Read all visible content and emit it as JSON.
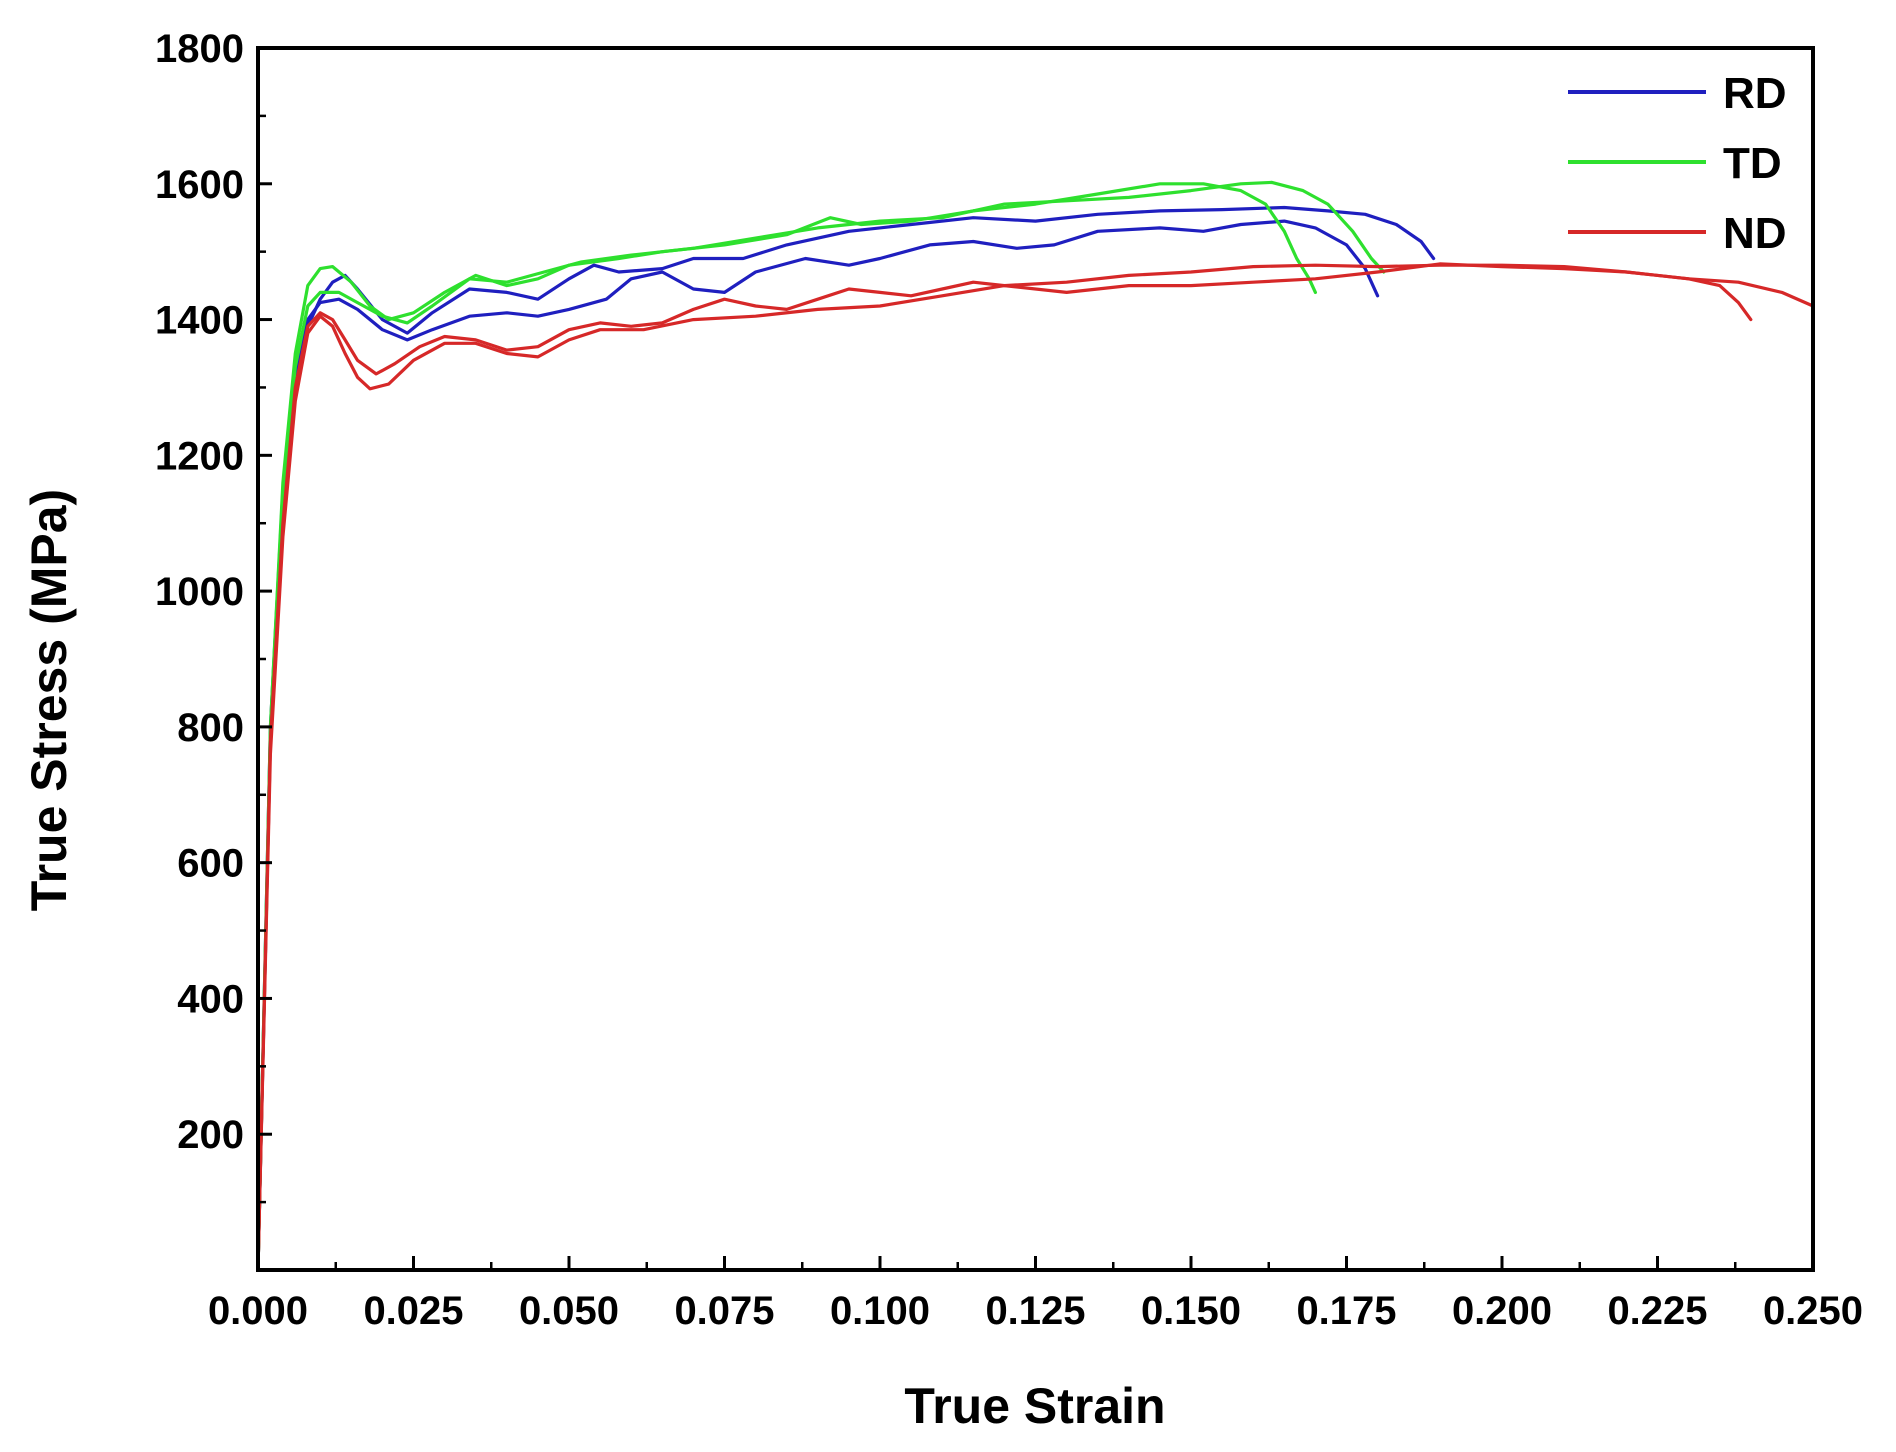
{
  "chart_data": {
    "type": "line",
    "title": "",
    "xlabel": "True Strain",
    "ylabel": "True Stress (MPa)",
    "xlim": [
      0,
      0.25
    ],
    "ylim": [
      0,
      1800
    ],
    "xticks": [
      "0.000",
      "0.025",
      "0.050",
      "0.075",
      "0.100",
      "0.125",
      "0.150",
      "0.175",
      "0.200",
      "0.225",
      "0.250"
    ],
    "yticks": [
      "200",
      "400",
      "600",
      "800",
      "1000",
      "1200",
      "1400",
      "1600",
      "1800"
    ],
    "grid": false,
    "legend_position": "top-right",
    "legend": [
      {
        "name": "RD",
        "color": "#1f1fbf"
      },
      {
        "name": "TD",
        "color": "#2ee02e"
      },
      {
        "name": "ND",
        "color": "#d62828"
      }
    ],
    "series": [
      {
        "name": "RD",
        "group": "RD",
        "color": "#1f1fbf",
        "points": [
          [
            0,
            0
          ],
          [
            0.002,
            800
          ],
          [
            0.004,
            1150
          ],
          [
            0.006,
            1320
          ],
          [
            0.008,
            1400
          ],
          [
            0.01,
            1425
          ],
          [
            0.013,
            1430
          ],
          [
            0.016,
            1415
          ],
          [
            0.02,
            1385
          ],
          [
            0.024,
            1370
          ],
          [
            0.028,
            1385
          ],
          [
            0.034,
            1405
          ],
          [
            0.04,
            1410
          ],
          [
            0.045,
            1405
          ],
          [
            0.05,
            1415
          ],
          [
            0.056,
            1430
          ],
          [
            0.06,
            1460
          ],
          [
            0.065,
            1470
          ],
          [
            0.07,
            1445
          ],
          [
            0.075,
            1440
          ],
          [
            0.08,
            1470
          ],
          [
            0.088,
            1490
          ],
          [
            0.095,
            1480
          ],
          [
            0.1,
            1490
          ],
          [
            0.108,
            1510
          ],
          [
            0.115,
            1515
          ],
          [
            0.122,
            1505
          ],
          [
            0.128,
            1510
          ],
          [
            0.135,
            1530
          ],
          [
            0.145,
            1535
          ],
          [
            0.152,
            1530
          ],
          [
            0.158,
            1540
          ],
          [
            0.165,
            1545
          ],
          [
            0.17,
            1535
          ],
          [
            0.175,
            1510
          ],
          [
            0.178,
            1475
          ],
          [
            0.18,
            1435
          ]
        ]
      },
      {
        "name": "RD",
        "group": "RD",
        "color": "#1f1fbf",
        "points": [
          [
            0,
            0
          ],
          [
            0.002,
            780
          ],
          [
            0.004,
            1120
          ],
          [
            0.006,
            1300
          ],
          [
            0.008,
            1390
          ],
          [
            0.01,
            1430
          ],
          [
            0.012,
            1455
          ],
          [
            0.014,
            1465
          ],
          [
            0.016,
            1445
          ],
          [
            0.02,
            1400
          ],
          [
            0.024,
            1380
          ],
          [
            0.028,
            1410
          ],
          [
            0.034,
            1445
          ],
          [
            0.04,
            1440
          ],
          [
            0.045,
            1430
          ],
          [
            0.05,
            1460
          ],
          [
            0.054,
            1480
          ],
          [
            0.058,
            1470
          ],
          [
            0.065,
            1475
          ],
          [
            0.07,
            1490
          ],
          [
            0.078,
            1490
          ],
          [
            0.085,
            1510
          ],
          [
            0.095,
            1530
          ],
          [
            0.105,
            1540
          ],
          [
            0.115,
            1550
          ],
          [
            0.125,
            1545
          ],
          [
            0.135,
            1555
          ],
          [
            0.145,
            1560
          ],
          [
            0.155,
            1562
          ],
          [
            0.165,
            1565
          ],
          [
            0.172,
            1560
          ],
          [
            0.178,
            1555
          ],
          [
            0.183,
            1540
          ],
          [
            0.187,
            1515
          ],
          [
            0.189,
            1490
          ]
        ]
      },
      {
        "name": "TD",
        "group": "TD",
        "color": "#2ee02e",
        "points": [
          [
            0,
            0
          ],
          [
            0.002,
            800
          ],
          [
            0.004,
            1160
          ],
          [
            0.006,
            1350
          ],
          [
            0.008,
            1450
          ],
          [
            0.01,
            1475
          ],
          [
            0.012,
            1478
          ],
          [
            0.015,
            1455
          ],
          [
            0.018,
            1420
          ],
          [
            0.021,
            1400
          ],
          [
            0.025,
            1410
          ],
          [
            0.03,
            1440
          ],
          [
            0.035,
            1465
          ],
          [
            0.04,
            1450
          ],
          [
            0.045,
            1460
          ],
          [
            0.05,
            1480
          ],
          [
            0.058,
            1490
          ],
          [
            0.065,
            1500
          ],
          [
            0.075,
            1510
          ],
          [
            0.085,
            1525
          ],
          [
            0.092,
            1550
          ],
          [
            0.097,
            1540
          ],
          [
            0.105,
            1545
          ],
          [
            0.115,
            1560
          ],
          [
            0.125,
            1570
          ],
          [
            0.135,
            1585
          ],
          [
            0.145,
            1600
          ],
          [
            0.152,
            1600
          ],
          [
            0.158,
            1590
          ],
          [
            0.162,
            1570
          ],
          [
            0.165,
            1530
          ],
          [
            0.167,
            1490
          ],
          [
            0.169,
            1460
          ],
          [
            0.17,
            1440
          ]
        ]
      },
      {
        "name": "TD",
        "group": "TD",
        "color": "#2ee02e",
        "points": [
          [
            0,
            0
          ],
          [
            0.002,
            790
          ],
          [
            0.004,
            1140
          ],
          [
            0.006,
            1330
          ],
          [
            0.008,
            1420
          ],
          [
            0.01,
            1440
          ],
          [
            0.013,
            1440
          ],
          [
            0.016,
            1425
          ],
          [
            0.02,
            1405
          ],
          [
            0.024,
            1395
          ],
          [
            0.028,
            1420
          ],
          [
            0.034,
            1460
          ],
          [
            0.04,
            1455
          ],
          [
            0.046,
            1470
          ],
          [
            0.052,
            1485
          ],
          [
            0.06,
            1495
          ],
          [
            0.07,
            1505
          ],
          [
            0.08,
            1520
          ],
          [
            0.09,
            1535
          ],
          [
            0.1,
            1545
          ],
          [
            0.11,
            1550
          ],
          [
            0.12,
            1570
          ],
          [
            0.13,
            1575
          ],
          [
            0.14,
            1580
          ],
          [
            0.15,
            1590
          ],
          [
            0.158,
            1600
          ],
          [
            0.163,
            1602
          ],
          [
            0.168,
            1590
          ],
          [
            0.172,
            1570
          ],
          [
            0.176,
            1530
          ],
          [
            0.179,
            1490
          ],
          [
            0.181,
            1470
          ]
        ]
      },
      {
        "name": "ND",
        "group": "ND",
        "color": "#d62828",
        "points": [
          [
            0,
            0
          ],
          [
            0.002,
            780
          ],
          [
            0.004,
            1100
          ],
          [
            0.006,
            1300
          ],
          [
            0.008,
            1390
          ],
          [
            0.01,
            1410
          ],
          [
            0.012,
            1400
          ],
          [
            0.014,
            1370
          ],
          [
            0.016,
            1340
          ],
          [
            0.019,
            1320
          ],
          [
            0.022,
            1335
          ],
          [
            0.026,
            1360
          ],
          [
            0.03,
            1375
          ],
          [
            0.035,
            1370
          ],
          [
            0.04,
            1355
          ],
          [
            0.045,
            1360
          ],
          [
            0.05,
            1385
          ],
          [
            0.055,
            1395
          ],
          [
            0.06,
            1390
          ],
          [
            0.065,
            1395
          ],
          [
            0.07,
            1415
          ],
          [
            0.075,
            1430
          ],
          [
            0.08,
            1420
          ],
          [
            0.085,
            1415
          ],
          [
            0.09,
            1430
          ],
          [
            0.095,
            1445
          ],
          [
            0.1,
            1440
          ],
          [
            0.105,
            1435
          ],
          [
            0.11,
            1445
          ],
          [
            0.115,
            1455
          ],
          [
            0.12,
            1450
          ],
          [
            0.13,
            1455
          ],
          [
            0.14,
            1465
          ],
          [
            0.15,
            1470
          ],
          [
            0.16,
            1478
          ],
          [
            0.17,
            1480
          ],
          [
            0.18,
            1478
          ],
          [
            0.19,
            1480
          ],
          [
            0.2,
            1480
          ],
          [
            0.21,
            1478
          ],
          [
            0.22,
            1470
          ],
          [
            0.23,
            1460
          ],
          [
            0.235,
            1450
          ],
          [
            0.238,
            1425
          ],
          [
            0.24,
            1400
          ]
        ]
      },
      {
        "name": "ND",
        "group": "ND",
        "color": "#d62828",
        "points": [
          [
            0,
            0
          ],
          [
            0.002,
            760
          ],
          [
            0.004,
            1080
          ],
          [
            0.006,
            1280
          ],
          [
            0.008,
            1380
          ],
          [
            0.01,
            1405
          ],
          [
            0.012,
            1390
          ],
          [
            0.014,
            1350
          ],
          [
            0.016,
            1315
          ],
          [
            0.018,
            1298
          ],
          [
            0.021,
            1305
          ],
          [
            0.025,
            1340
          ],
          [
            0.03,
            1365
          ],
          [
            0.035,
            1365
          ],
          [
            0.04,
            1350
          ],
          [
            0.045,
            1345
          ],
          [
            0.05,
            1370
          ],
          [
            0.055,
            1385
          ],
          [
            0.062,
            1385
          ],
          [
            0.07,
            1400
          ],
          [
            0.08,
            1405
          ],
          [
            0.09,
            1415
          ],
          [
            0.1,
            1420
          ],
          [
            0.11,
            1435
          ],
          [
            0.12,
            1450
          ],
          [
            0.13,
            1440
          ],
          [
            0.14,
            1450
          ],
          [
            0.15,
            1450
          ],
          [
            0.16,
            1455
          ],
          [
            0.17,
            1460
          ],
          [
            0.18,
            1470
          ],
          [
            0.19,
            1482
          ],
          [
            0.2,
            1478
          ],
          [
            0.21,
            1475
          ],
          [
            0.22,
            1470
          ],
          [
            0.23,
            1460
          ],
          [
            0.238,
            1455
          ],
          [
            0.245,
            1440
          ],
          [
            0.25,
            1420
          ]
        ]
      }
    ]
  }
}
